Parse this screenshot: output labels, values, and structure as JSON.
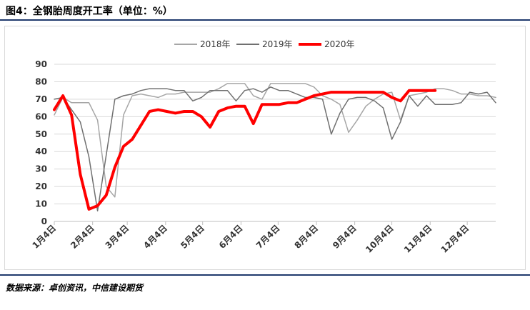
{
  "title": "图4：全钢胎周度开工率（单位：%）",
  "source": "数据来源：卓创资讯，中信建设期货",
  "colors": {
    "s2018": "#a6a6a6",
    "s2019": "#707070",
    "s2020": "#ff0000",
    "grid": "#d9d9d9"
  },
  "chart_data": {
    "type": "line",
    "title": "",
    "xlabel": "",
    "ylabel": "",
    "ylim": [
      0,
      90
    ],
    "yticks": [
      0,
      10,
      20,
      30,
      40,
      50,
      60,
      70,
      80,
      90
    ],
    "xlim": [
      0,
      51
    ],
    "xtick_labels": [
      "1月4日",
      "2月4日",
      "3月4日",
      "4月4日",
      "5月4日",
      "6月4日",
      "7月4日",
      "8月4日",
      "9月4日",
      "10月4日",
      "11月4日",
      "12月4日"
    ],
    "xtick_positions": [
      0,
      4.43,
      8.43,
      12.86,
      17.14,
      21.57,
      25.86,
      30.29,
      34.71,
      39,
      43.43,
      47.71
    ],
    "grid": true,
    "legend_position": "top",
    "series": [
      {
        "name": "2018年",
        "x": [
          0,
          1,
          2,
          3,
          4,
          5,
          6,
          7,
          8,
          9,
          10,
          11,
          12,
          13,
          14,
          15,
          16,
          17,
          18,
          19,
          20,
          21,
          22,
          23,
          24,
          25,
          26,
          27,
          28,
          29,
          30,
          31,
          32,
          33,
          34,
          35,
          36,
          37,
          38,
          39,
          40,
          41,
          42,
          43,
          44,
          45,
          46,
          47,
          48,
          49,
          50,
          51
        ],
        "y": [
          61,
          71,
          68,
          68,
          68,
          58,
          20,
          14,
          61,
          72,
          73,
          72,
          71,
          73,
          73,
          74,
          74,
          74,
          74,
          76,
          79,
          79,
          79,
          72,
          70,
          79,
          79,
          79,
          79,
          79,
          77,
          72,
          70,
          67,
          51,
          58,
          66,
          70,
          73,
          74,
          58,
          72,
          73,
          74,
          76,
          76,
          75,
          73,
          73,
          72,
          72,
          71
        ]
      },
      {
        "name": "2019年",
        "x": [
          0,
          1,
          2,
          3,
          4,
          5,
          6,
          7,
          8,
          9,
          10,
          11,
          12,
          13,
          14,
          15,
          16,
          17,
          18,
          19,
          20,
          21,
          22,
          23,
          24,
          25,
          26,
          27,
          28,
          29,
          30,
          31,
          32,
          33,
          34,
          35,
          36,
          37,
          38,
          39,
          40,
          41,
          42,
          43,
          44,
          45,
          46,
          47,
          48,
          49,
          50,
          51
        ],
        "y": [
          70,
          71,
          64,
          57,
          37,
          6,
          38,
          70,
          72,
          73,
          75,
          76,
          76,
          76,
          75,
          75,
          69,
          71,
          75,
          75,
          75,
          69,
          75,
          76,
          74,
          77,
          75,
          75,
          73,
          71,
          71,
          70,
          50,
          62,
          70,
          71,
          71,
          69,
          65,
          47,
          57,
          72,
          66,
          72,
          67,
          67,
          67,
          68,
          74,
          73,
          74,
          68
        ]
      },
      {
        "name": "2020年",
        "x": [
          0,
          1,
          2,
          3,
          4,
          5,
          6,
          7,
          8,
          9,
          10,
          11,
          12,
          13,
          14,
          15,
          16,
          17,
          18,
          19,
          20,
          21,
          22,
          23,
          24,
          25,
          26,
          27,
          28,
          29,
          30,
          31,
          32,
          33,
          34,
          35,
          36,
          37,
          38,
          39,
          40,
          41,
          42,
          43,
          44
        ],
        "y": [
          64,
          72,
          61,
          27,
          7,
          9,
          15,
          31,
          43,
          47,
          55,
          63,
          64,
          63,
          62,
          63,
          63,
          60,
          54,
          63,
          65,
          66,
          66,
          56,
          67,
          67,
          67,
          68,
          68,
          70,
          72,
          73,
          74,
          74,
          74,
          74,
          74,
          74,
          74,
          71,
          69,
          75,
          75,
          75,
          75
        ]
      }
    ]
  }
}
